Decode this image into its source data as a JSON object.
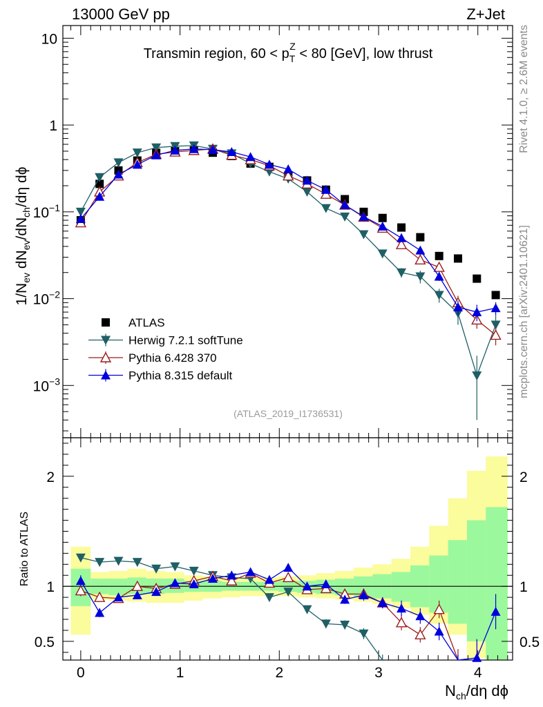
{
  "header": {
    "left": "13000 GeV pp",
    "right": "Z+Jet"
  },
  "side_labels": {
    "top": "Rivet 4.1.0, ≥ 2.6M events",
    "bottom": "mcplots.cern.ch [arXiv:2401.10621]"
  },
  "colors": {
    "atlas": "#000000",
    "herwig": "#1f5f66",
    "pythia6": "#9b1c1c",
    "pythia8": "#0000dd",
    "band_yellow": "#fbfc9c",
    "band_green": "#9cf89c"
  },
  "chart_data": [
    {
      "type": "scatter",
      "name": "main",
      "title": "Transmin region, 60 < pTZ < 80 [GeV], low thrust",
      "title_parts": [
        "Transmin region, 60 < p",
        "T",
        "Z",
        " < 80 [GeV], low thrust"
      ],
      "ylabel": "1/Nev dNev/dNch/dη dϕ",
      "yscale": "log",
      "ylim": [
        0.00025,
        14
      ],
      "xlim": [
        -0.18,
        4.35
      ],
      "yticks": [
        {
          "value": 10,
          "label": "10"
        },
        {
          "value": 1,
          "label": "1"
        },
        {
          "value": 0.1,
          "label": "10",
          "sup": "−1"
        },
        {
          "value": 0.01,
          "label": "10",
          "sup": "−2"
        },
        {
          "value": 0.001,
          "label": "10",
          "sup": "−3"
        }
      ],
      "watermark": "(ATLAS_2019_I1736531)",
      "legend": [
        "ATLAS",
        "Herwig 7.2.1 softTune",
        "Pythia 6.428 370",
        "Pythia 8.315 default"
      ],
      "series": [
        {
          "name": "ATLAS",
          "marker": "square",
          "x": [
            0,
            0.19,
            0.38,
            0.57,
            0.76,
            0.95,
            1.14,
            1.33,
            1.52,
            1.71,
            1.9,
            2.09,
            2.28,
            2.47,
            2.66,
            2.85,
            3.04,
            3.23,
            3.42,
            3.61,
            3.8,
            3.99,
            4.18
          ],
          "y": [
            0.08,
            0.21,
            0.3,
            0.39,
            0.48,
            0.5,
            0.51,
            0.48,
            0.44,
            0.36,
            0.33,
            0.26,
            0.23,
            0.18,
            0.14,
            0.1,
            0.085,
            0.066,
            0.051,
            0.031,
            0.029,
            0.017,
            0.011
          ]
        },
        {
          "name": "Herwig 7.2.1 softTune",
          "marker": "triangle-down",
          "x": [
            0,
            0.19,
            0.38,
            0.57,
            0.76,
            0.95,
            1.14,
            1.33,
            1.52,
            1.71,
            1.9,
            2.09,
            2.28,
            2.47,
            2.66,
            2.85,
            3.04,
            3.23,
            3.42,
            3.61,
            3.8,
            3.99,
            4.18
          ],
          "y": [
            0.1,
            0.25,
            0.37,
            0.48,
            0.55,
            0.57,
            0.58,
            0.53,
            0.47,
            0.36,
            0.29,
            0.24,
            0.17,
            0.11,
            0.088,
            0.055,
            0.033,
            0.02,
            0.018,
            0.011,
            0.0068,
            0.0013,
            0.005
          ],
          "err": [
            0,
            0,
            0,
            0,
            0,
            0,
            0,
            0,
            0,
            0,
            0,
            0,
            0,
            0,
            0,
            0.003,
            0.003,
            0.0025,
            0.003,
            0.002,
            0.0018,
            0.0009,
            0.0015
          ]
        },
        {
          "name": "Pythia 6.428 370",
          "marker": "triangle-up-open",
          "x": [
            0,
            0.19,
            0.38,
            0.57,
            0.76,
            0.95,
            1.14,
            1.33,
            1.52,
            1.71,
            1.9,
            2.09,
            2.28,
            2.47,
            2.66,
            2.85,
            3.04,
            3.23,
            3.42,
            3.61,
            3.8,
            3.99,
            4.18
          ],
          "y": [
            0.075,
            0.17,
            0.26,
            0.37,
            0.46,
            0.49,
            0.51,
            0.53,
            0.45,
            0.4,
            0.34,
            0.26,
            0.21,
            0.16,
            0.12,
            0.087,
            0.065,
            0.042,
            0.028,
            0.023,
            0.009,
            0.0057,
            0.0038
          ],
          "err": [
            0,
            0,
            0,
            0,
            0,
            0,
            0,
            0,
            0,
            0,
            0,
            0,
            0,
            0,
            0,
            0.003,
            0.003,
            0.003,
            0.003,
            0.003,
            0.0018,
            0.0012,
            0.0009
          ]
        },
        {
          "name": "Pythia 8.315 default",
          "marker": "triangle-up",
          "x": [
            0,
            0.19,
            0.38,
            0.57,
            0.76,
            0.95,
            1.14,
            1.33,
            1.52,
            1.71,
            1.9,
            2.09,
            2.28,
            2.47,
            2.66,
            2.85,
            3.04,
            3.23,
            3.42,
            3.61,
            3.8,
            3.99,
            4.18
          ],
          "y": [
            0.083,
            0.15,
            0.27,
            0.35,
            0.45,
            0.51,
            0.53,
            0.52,
            0.49,
            0.43,
            0.35,
            0.31,
            0.23,
            0.18,
            0.12,
            0.088,
            0.068,
            0.05,
            0.036,
            0.018,
            0.008,
            0.007,
            0.0078
          ],
          "err": [
            0,
            0,
            0,
            0,
            0,
            0,
            0,
            0,
            0,
            0,
            0,
            0,
            0,
            0,
            0,
            0.003,
            0.003,
            0.003,
            0.003,
            0.002,
            0.0015,
            0.0015,
            0.0013
          ]
        }
      ]
    },
    {
      "type": "scatter",
      "name": "ratio",
      "ylabel": "Ratio to ATLAS",
      "xlabel": "Nch/dη dϕ",
      "xlim": [
        -0.18,
        4.35
      ],
      "ylim": [
        0.33,
        2.35
      ],
      "xticks": [
        0,
        1,
        2,
        3,
        4
      ],
      "yticks": [
        0.5,
        1,
        2
      ],
      "reference_line": 1,
      "bands": {
        "edges": [
          -0.1,
          0.1,
          0.28,
          0.47,
          0.66,
          0.85,
          1.04,
          1.23,
          1.42,
          1.61,
          1.8,
          1.99,
          2.18,
          2.37,
          2.56,
          2.75,
          2.94,
          3.13,
          3.32,
          3.51,
          3.7,
          3.89,
          4.08,
          4.3
        ],
        "yellow_lo": [
          0.56,
          0.88,
          0.87,
          0.86,
          0.85,
          0.85,
          0.87,
          0.89,
          0.9,
          0.91,
          0.91,
          0.91,
          0.9,
          0.89,
          0.88,
          0.86,
          0.84,
          0.8,
          0.74,
          0.66,
          0.56,
          0.35,
          0.33
        ],
        "yellow_hi": [
          1.36,
          1.13,
          1.14,
          1.16,
          1.14,
          1.13,
          1.1,
          1.09,
          1.08,
          1.08,
          1.08,
          1.09,
          1.1,
          1.12,
          1.14,
          1.17,
          1.2,
          1.25,
          1.36,
          1.55,
          1.8,
          2.05,
          2.18
        ],
        "green_lo": [
          0.82,
          0.93,
          0.92,
          0.93,
          0.93,
          0.94,
          0.95,
          0.95,
          0.96,
          0.96,
          0.96,
          0.95,
          0.94,
          0.93,
          0.92,
          0.9,
          0.89,
          0.86,
          0.81,
          0.76,
          0.66,
          0.5,
          0.33
        ],
        "green_hi": [
          1.16,
          1.07,
          1.07,
          1.08,
          1.07,
          1.07,
          1.05,
          1.05,
          1.04,
          1.04,
          1.04,
          1.05,
          1.05,
          1.06,
          1.07,
          1.09,
          1.11,
          1.13,
          1.19,
          1.28,
          1.42,
          1.6,
          1.72
        ]
      },
      "series": [
        {
          "name": "Herwig 7.2.1 softTune",
          "marker": "triangle-down",
          "x": [
            0,
            0.19,
            0.38,
            0.57,
            0.76,
            0.95,
            1.14,
            1.33,
            1.52,
            1.71,
            1.9,
            2.09,
            2.28,
            2.47,
            2.66,
            2.85,
            3.04
          ],
          "y": [
            1.26,
            1.22,
            1.23,
            1.22,
            1.16,
            1.18,
            1.14,
            1.1,
            1.08,
            1.07,
            0.9,
            0.95,
            0.79,
            0.66,
            0.65,
            0.57,
            0.33
          ],
          "err": [
            0.03,
            0.03,
            0.03,
            0.03,
            0.03,
            0.03,
            0.03,
            0.03,
            0.03,
            0.03,
            0.03,
            0.03,
            0.03,
            0.04,
            0.04,
            0.05,
            0.05
          ]
        },
        {
          "name": "Pythia 6.428 370",
          "marker": "triangle-up-open",
          "x": [
            0,
            0.19,
            0.38,
            0.57,
            0.76,
            0.95,
            1.14,
            1.33,
            1.52,
            1.71,
            1.9,
            2.09,
            2.28,
            2.47,
            2.66,
            2.85,
            3.04,
            3.23,
            3.42,
            3.61,
            3.8
          ],
          "y": [
            0.96,
            0.9,
            0.89,
            1.0,
            0.98,
            1.02,
            1.05,
            1.09,
            1.05,
            1.12,
            1.03,
            1.08,
            0.97,
            0.98,
            0.93,
            0.93,
            0.85,
            0.67,
            0.56,
            0.79,
            0.33
          ],
          "err": [
            0.05,
            0.04,
            0.03,
            0.03,
            0.03,
            0.03,
            0.03,
            0.03,
            0.03,
            0.03,
            0.03,
            0.03,
            0.03,
            0.03,
            0.04,
            0.05,
            0.05,
            0.07,
            0.07,
            0.08,
            0.1
          ]
        },
        {
          "name": "Pythia 8.315 default",
          "marker": "triangle-up",
          "x": [
            0,
            0.19,
            0.38,
            0.57,
            0.76,
            0.95,
            1.14,
            1.33,
            1.52,
            1.71,
            1.9,
            2.09,
            2.28,
            2.47,
            2.66,
            2.85,
            3.04,
            3.23,
            3.42,
            3.61,
            3.8,
            3.99,
            4.18
          ],
          "y": [
            1.05,
            0.76,
            0.9,
            0.92,
            0.95,
            1.03,
            1.02,
            1.07,
            1.1,
            1.13,
            1.06,
            1.17,
            1.0,
            1.02,
            0.88,
            0.92,
            0.85,
            0.8,
            0.73,
            0.59,
            0.28,
            0.35,
            0.77
          ],
          "err": [
            0.05,
            0.04,
            0.03,
            0.03,
            0.03,
            0.03,
            0.03,
            0.03,
            0.03,
            0.03,
            0.03,
            0.03,
            0.03,
            0.03,
            0.04,
            0.05,
            0.05,
            0.07,
            0.07,
            0.08,
            0.1,
            0.17,
            0.16
          ]
        }
      ]
    }
  ]
}
